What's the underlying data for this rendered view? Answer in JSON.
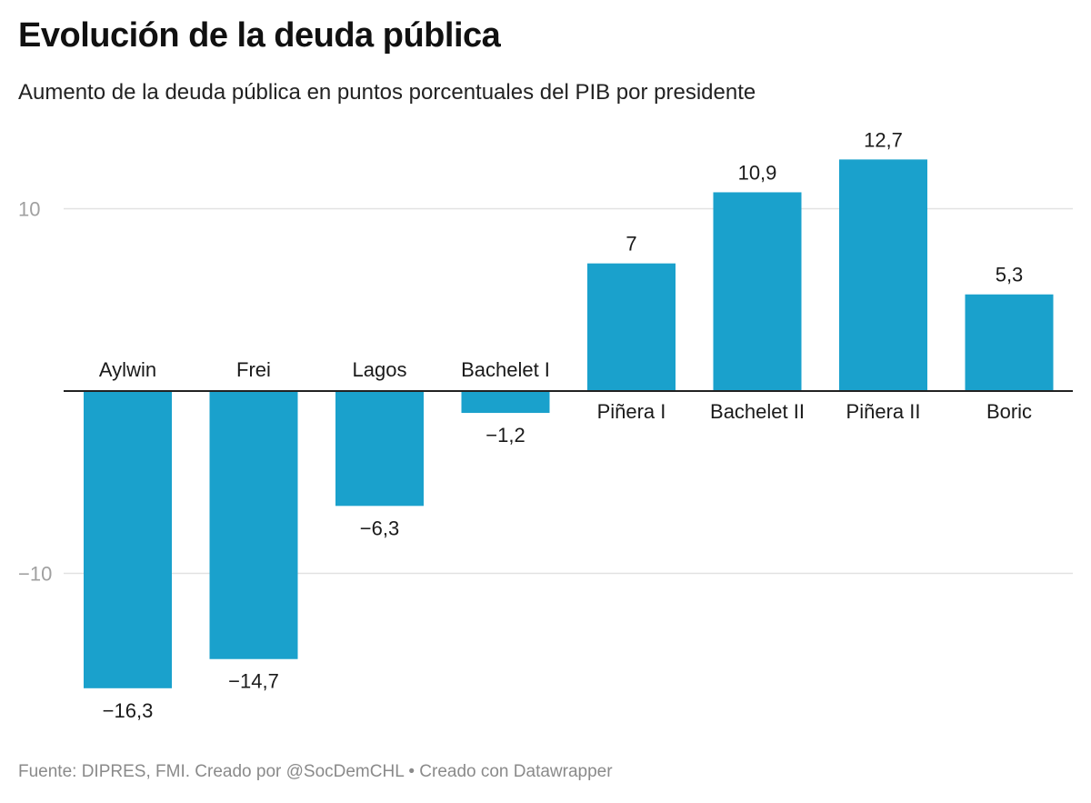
{
  "header": {
    "title": "Evolución de la deuda pública",
    "subtitle": "Aumento de la deuda pública en puntos porcentuales del PIB por presidente"
  },
  "footer": {
    "source": "Fuente:  DIPRES, FMI. Creado por @SocDemCHL • Creado con Datawrapper"
  },
  "colors": {
    "bar": "#1aa1cc",
    "grid": "#e2e2e2",
    "axis": "#222222",
    "tick_label": "#a0a0a0"
  },
  "chart_data": {
    "type": "bar",
    "title": "Evolución de la deuda pública",
    "subtitle": "Aumento de la deuda pública en puntos porcentuales del PIB por presidente",
    "categories": [
      "Aylwin",
      "Frei",
      "Lagos",
      "Bachelet I",
      "Piñera I",
      "Bachelet II",
      "Piñera II",
      "Boric"
    ],
    "values": [
      -16.3,
      -14.7,
      -6.3,
      -1.2,
      7,
      10.9,
      12.7,
      5.3
    ],
    "value_labels": [
      "−16,3",
      "−14,7",
      "−6,3",
      "−1,2",
      "7",
      "10,9",
      "12,7",
      "5,3"
    ],
    "yticks": [
      10,
      -10
    ],
    "ytick_labels": [
      "10",
      "−10"
    ],
    "ylim": [
      -18,
      13
    ],
    "grid": true,
    "xlabel": "",
    "ylabel": ""
  }
}
